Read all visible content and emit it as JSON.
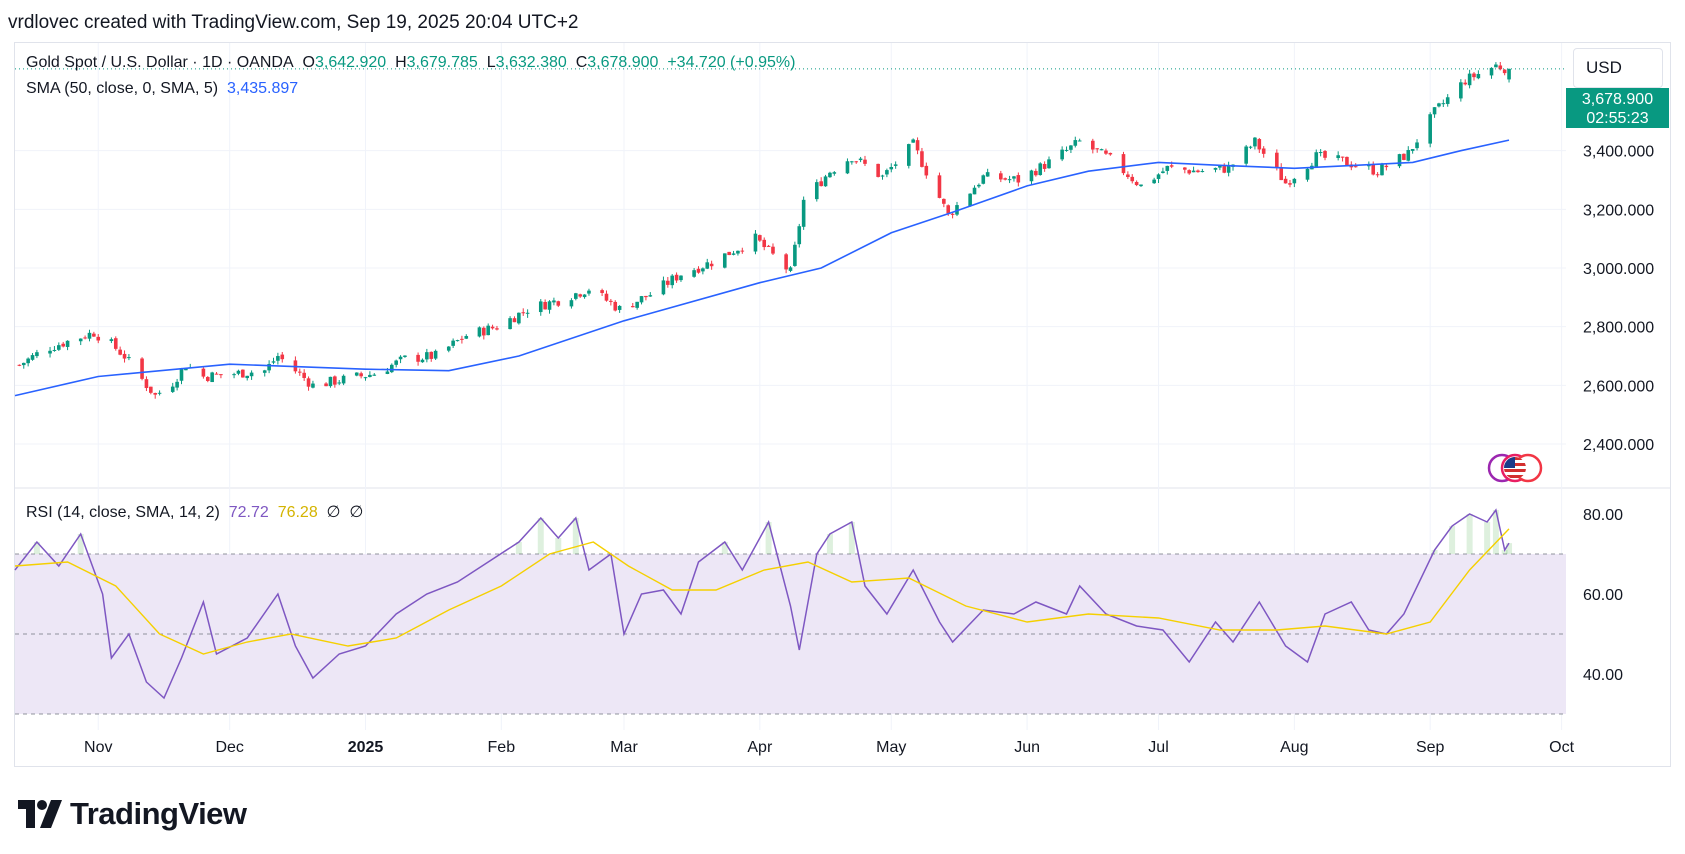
{
  "attribution": "vrdlovec created with TradingView.com, Sep 19, 2025 20:04 UTC+2",
  "legend": {
    "symbol": "Gold Spot / U.S. Dollar · 1D · OANDA",
    "open_label": "O",
    "open": "3,642.920",
    "high_label": "H",
    "high": "3,679.785",
    "low_label": "L",
    "low": "3,632.380",
    "close_label": "C",
    "close": "3,678.900",
    "change": "+34.720 (+0.95%)",
    "sma_label": "SMA (50, close, 0, SMA, 5)",
    "sma_value": "3,435.897",
    "rsi_label": "RSI (14, close, SMA, 14, 2)",
    "rsi_value": "72.72",
    "rsi_ma_value": "76.28",
    "rsi_extra1": "∅",
    "rsi_extra2": "∅"
  },
  "currency": "USD",
  "price_tag": {
    "price": "3,678.900",
    "countdown": "02:55:23"
  },
  "brand": {
    "name": "TradingView",
    "logo_icon": "tradingview-logo-icon"
  },
  "flag_icon": "us-flag-icon",
  "colors": {
    "up": "#089981",
    "down": "#f23645",
    "sma": "#2962ff",
    "rsi": "#7e57c2",
    "rsi_ma": "#f5d000",
    "rsi_band": "#ede7f6"
  },
  "chart_data": [
    {
      "type": "candlestick",
      "title": "Gold Spot / U.S. Dollar · 1D · OANDA",
      "ylim": [
        2250,
        3750
      ],
      "y_ticks": [
        2400,
        2600,
        2800,
        3000,
        3200,
        3400
      ],
      "y_tick_labels": [
        "2,400.000",
        "2,600.000",
        "2,800.000",
        "3,000.000",
        "3,200.000",
        "3,400.000"
      ],
      "x_range": [
        "2024-10-13",
        "2025-10-02"
      ],
      "x_ticks": [
        "2024-11-01",
        "2024-12-01",
        "2025-01-01",
        "2025-02-01",
        "2025-03-01",
        "2025-04-01",
        "2025-05-01",
        "2025-06-01",
        "2025-07-01",
        "2025-08-01",
        "2025-09-01",
        "2025-10-01"
      ],
      "x_tick_labels": [
        "Nov",
        "Dec",
        "2025",
        "Feb",
        "Mar",
        "Apr",
        "May",
        "Jun",
        "Jul",
        "Aug",
        "Sep",
        "Oct"
      ],
      "close_path": [
        [
          "2024-10-13",
          2660
        ],
        [
          "2024-10-20",
          2725
        ],
        [
          "2024-10-27",
          2760
        ],
        [
          "2024-10-31",
          2780
        ],
        [
          "2024-11-04",
          2740
        ],
        [
          "2024-11-07",
          2700
        ],
        [
          "2024-11-11",
          2620
        ],
        [
          "2024-11-14",
          2565
        ],
        [
          "2024-11-18",
          2610
        ],
        [
          "2024-11-21",
          2670
        ],
        [
          "2024-11-25",
          2630
        ],
        [
          "2024-12-02",
          2640
        ],
        [
          "2024-12-09",
          2650
        ],
        [
          "2024-12-12",
          2700
        ],
        [
          "2024-12-16",
          2650
        ],
        [
          "2024-12-20",
          2600
        ],
        [
          "2024-12-27",
          2620
        ],
        [
          "2025-01-03",
          2640
        ],
        [
          "2025-01-10",
          2690
        ],
        [
          "2025-01-17",
          2700
        ],
        [
          "2025-01-24",
          2770
        ],
        [
          "2025-01-31",
          2800
        ],
        [
          "2025-02-07",
          2860
        ],
        [
          "2025-02-14",
          2890
        ],
        [
          "2025-02-21",
          2930
        ],
        [
          "2025-02-28",
          2860
        ],
        [
          "2025-03-07",
          2910
        ],
        [
          "2025-03-14",
          2980
        ],
        [
          "2025-03-21",
          3020
        ],
        [
          "2025-03-31",
          3100
        ],
        [
          "2025-04-08",
          2985
        ],
        [
          "2025-04-11",
          3230
        ],
        [
          "2025-04-17",
          3330
        ],
        [
          "2025-04-22",
          3380
        ],
        [
          "2025-04-29",
          3310
        ],
        [
          "2025-05-06",
          3420
        ],
        [
          "2025-05-14",
          3180
        ],
        [
          "2025-05-22",
          3310
        ],
        [
          "2025-05-30",
          3300
        ],
        [
          "2025-06-06",
          3360
        ],
        [
          "2025-06-13",
          3430
        ],
        [
          "2025-06-20",
          3370
        ],
        [
          "2025-06-27",
          3280
        ],
        [
          "2025-07-03",
          3340
        ],
        [
          "2025-07-10",
          3330
        ],
        [
          "2025-07-17",
          3340
        ],
        [
          "2025-07-23",
          3430
        ],
        [
          "2025-07-30",
          3290
        ],
        [
          "2025-08-06",
          3380
        ],
        [
          "2025-08-13",
          3360
        ],
        [
          "2025-08-20",
          3330
        ],
        [
          "2025-08-27",
          3390
        ],
        [
          "2025-09-02",
          3530
        ],
        [
          "2025-09-09",
          3640
        ],
        [
          "2025-09-16",
          3690
        ],
        [
          "2025-09-19",
          3679
        ]
      ],
      "last": {
        "date": "2025-09-19",
        "open": 3642.92,
        "high": 3679.785,
        "low": 3632.38,
        "close": 3678.9
      },
      "series": [
        {
          "name": "SMA (50, close, 0, SMA, 5)",
          "type": "line",
          "points": [
            [
              "2024-10-13",
              2565
            ],
            [
              "2024-11-01",
              2630
            ],
            [
              "2024-12-01",
              2672
            ],
            [
              "2025-01-01",
              2655
            ],
            [
              "2025-01-20",
              2650
            ],
            [
              "2025-02-05",
              2700
            ],
            [
              "2025-03-01",
              2820
            ],
            [
              "2025-04-01",
              2950
            ],
            [
              "2025-04-15",
              3000
            ],
            [
              "2025-05-01",
              3120
            ],
            [
              "2025-05-15",
              3190
            ],
            [
              "2025-06-01",
              3280
            ],
            [
              "2025-06-15",
              3330
            ],
            [
              "2025-07-01",
              3360
            ],
            [
              "2025-07-15",
              3350
            ],
            [
              "2025-08-01",
              3340
            ],
            [
              "2025-08-15",
              3350
            ],
            [
              "2025-08-28",
              3360
            ],
            [
              "2025-09-08",
              3400
            ],
            [
              "2025-09-19",
              3436
            ]
          ]
        }
      ]
    },
    {
      "type": "line",
      "title": "RSI (14, close, SMA, 14, 2)",
      "ylim": [
        26,
        86
      ],
      "y_ticks": [
        40,
        60,
        80
      ],
      "y_tick_labels": [
        "40.00",
        "60.00",
        "80.00"
      ],
      "bands": [
        30,
        50,
        70
      ],
      "series": [
        {
          "name": "RSI",
          "points": [
            [
              "2024-10-13",
              66
            ],
            [
              "2024-10-18",
              73
            ],
            [
              "2024-10-23",
              67
            ],
            [
              "2024-10-28",
              75
            ],
            [
              "2024-11-02",
              60
            ],
            [
              "2024-11-04",
              44
            ],
            [
              "2024-11-08",
              50
            ],
            [
              "2024-11-12",
              38
            ],
            [
              "2024-11-16",
              34
            ],
            [
              "2024-11-20",
              44
            ],
            [
              "2024-11-25",
              58
            ],
            [
              "2024-11-28",
              45
            ],
            [
              "2024-12-05",
              49
            ],
            [
              "2024-12-12",
              60
            ],
            [
              "2024-12-16",
              47
            ],
            [
              "2024-12-20",
              39
            ],
            [
              "2024-12-26",
              45
            ],
            [
              "2025-01-01",
              47
            ],
            [
              "2025-01-08",
              55
            ],
            [
              "2025-01-15",
              60
            ],
            [
              "2025-01-22",
              63
            ],
            [
              "2025-01-29",
              68
            ],
            [
              "2025-02-05",
              73
            ],
            [
              "2025-02-10",
              79
            ],
            [
              "2025-02-14",
              74
            ],
            [
              "2025-02-18",
              79
            ],
            [
              "2025-02-21",
              66
            ],
            [
              "2025-02-26",
              70
            ],
            [
              "2025-03-01",
              50
            ],
            [
              "2025-03-05",
              60
            ],
            [
              "2025-03-10",
              61
            ],
            [
              "2025-03-14",
              55
            ],
            [
              "2025-03-18",
              68
            ],
            [
              "2025-03-24",
              73
            ],
            [
              "2025-03-28",
              66
            ],
            [
              "2025-04-03",
              78
            ],
            [
              "2025-04-08",
              57
            ],
            [
              "2025-04-10",
              46
            ],
            [
              "2025-04-14",
              70
            ],
            [
              "2025-04-17",
              75
            ],
            [
              "2025-04-22",
              78
            ],
            [
              "2025-04-25",
              62
            ],
            [
              "2025-04-30",
              55
            ],
            [
              "2025-05-06",
              66
            ],
            [
              "2025-05-12",
              53
            ],
            [
              "2025-05-15",
              48
            ],
            [
              "2025-05-22",
              56
            ],
            [
              "2025-05-29",
              55
            ],
            [
              "2025-06-03",
              58
            ],
            [
              "2025-06-10",
              55
            ],
            [
              "2025-06-13",
              62
            ],
            [
              "2025-06-19",
              55
            ],
            [
              "2025-06-26",
              52
            ],
            [
              "2025-07-02",
              51
            ],
            [
              "2025-07-08",
              43
            ],
            [
              "2025-07-14",
              53
            ],
            [
              "2025-07-18",
              48
            ],
            [
              "2025-07-24",
              58
            ],
            [
              "2025-07-30",
              47
            ],
            [
              "2025-08-04",
              43
            ],
            [
              "2025-08-08",
              55
            ],
            [
              "2025-08-14",
              58
            ],
            [
              "2025-08-18",
              51
            ],
            [
              "2025-08-22",
              50
            ],
            [
              "2025-08-26",
              55
            ],
            [
              "2025-09-02",
              71
            ],
            [
              "2025-09-06",
              77
            ],
            [
              "2025-09-10",
              80
            ],
            [
              "2025-09-14",
              78
            ],
            [
              "2025-09-16",
              81
            ],
            [
              "2025-09-18",
              71
            ],
            [
              "2025-09-19",
              72.72
            ]
          ]
        },
        {
          "name": "RSI-based MA",
          "points": [
            [
              "2024-10-13",
              67
            ],
            [
              "2024-10-25",
              68
            ],
            [
              "2024-11-05",
              62
            ],
            [
              "2024-11-15",
              50
            ],
            [
              "2024-11-25",
              45
            ],
            [
              "2024-12-05",
              48
            ],
            [
              "2024-12-15",
              50
            ],
            [
              "2024-12-28",
              47
            ],
            [
              "2025-01-08",
              49
            ],
            [
              "2025-01-20",
              56
            ],
            [
              "2025-02-01",
              62
            ],
            [
              "2025-02-12",
              70
            ],
            [
              "2025-02-22",
              73
            ],
            [
              "2025-03-02",
              67
            ],
            [
              "2025-03-12",
              61
            ],
            [
              "2025-03-22",
              61
            ],
            [
              "2025-04-02",
              66
            ],
            [
              "2025-04-12",
              68
            ],
            [
              "2025-04-22",
              63
            ],
            [
              "2025-05-05",
              64
            ],
            [
              "2025-05-18",
              57
            ],
            [
              "2025-06-01",
              53
            ],
            [
              "2025-06-15",
              55
            ],
            [
              "2025-07-01",
              54
            ],
            [
              "2025-07-15",
              51
            ],
            [
              "2025-07-28",
              51
            ],
            [
              "2025-08-08",
              52
            ],
            [
              "2025-08-22",
              50
            ],
            [
              "2025-09-01",
              53
            ],
            [
              "2025-09-10",
              66
            ],
            [
              "2025-09-19",
              76.28
            ]
          ]
        }
      ]
    }
  ]
}
